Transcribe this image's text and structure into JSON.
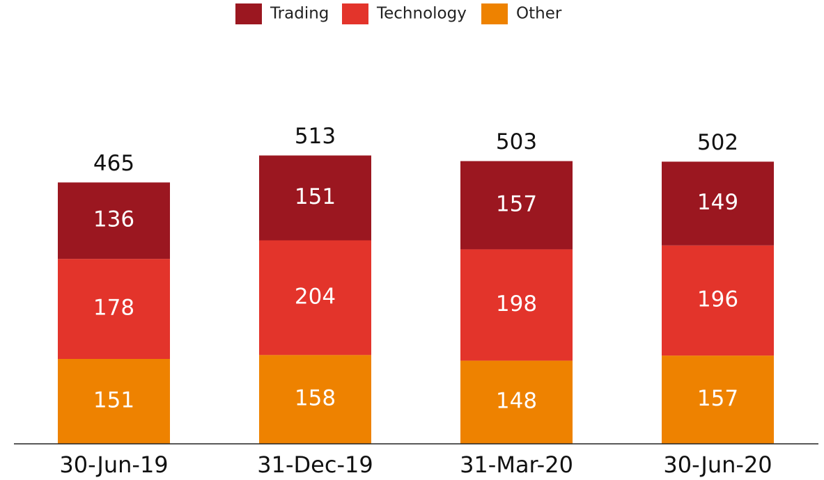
{
  "chart_data": {
    "type": "stacked_bar",
    "categories": [
      "30-Jun-19",
      "31-Dec-19",
      "31-Mar-20",
      "30-Jun-20"
    ],
    "series": [
      {
        "name": "Trading",
        "color": "#9b1720",
        "values": [
          136,
          151,
          157,
          149
        ]
      },
      {
        "name": "Technology",
        "color": "#e3342b",
        "values": [
          178,
          204,
          198,
          196
        ]
      },
      {
        "name": "Other",
        "color": "#ee8200",
        "values": [
          151,
          158,
          148,
          157
        ]
      }
    ],
    "totals": [
      465,
      513,
      503,
      502
    ],
    "ylim": [
      0,
      625
    ],
    "legend": "top"
  }
}
